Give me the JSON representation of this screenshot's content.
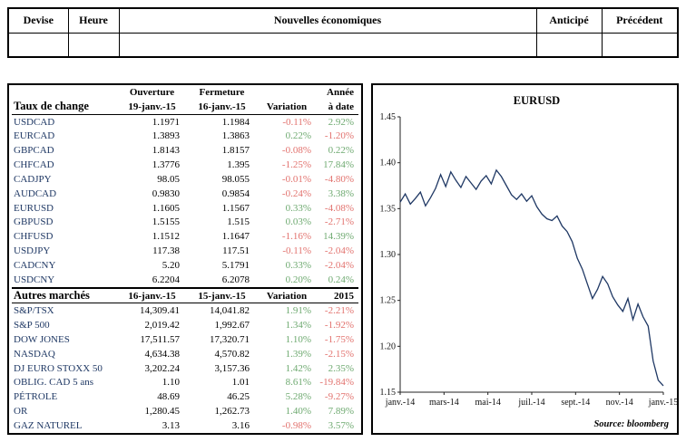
{
  "colors": {
    "positive": "#6faa71",
    "negative": "#e2726e",
    "instrument": "#1f3864",
    "chart_line": "#1f3864"
  },
  "calendar_table": {
    "headers": [
      "Devise",
      "Heure",
      "Nouvelles économiques",
      "Anticipé",
      "Précédent"
    ]
  },
  "rates": {
    "title": "Taux de change",
    "col_headers_line1": {
      "open": "Ouverture",
      "close": "Fermeture",
      "ytd": "Année"
    },
    "col_headers_line2": {
      "open": "19-janv.-15",
      "close": "16-janv.-15",
      "variation": "Variation",
      "ytd": "à date"
    },
    "rows": [
      {
        "name": "USDCAD",
        "open": "1.1971",
        "close": "1.1984",
        "variation": "-0.11%",
        "ytd": "2.92%"
      },
      {
        "name": "EURCAD",
        "open": "1.3893",
        "close": "1.3863",
        "variation": "0.22%",
        "ytd": "-1.20%"
      },
      {
        "name": "GBPCAD",
        "open": "1.8143",
        "close": "1.8157",
        "variation": "-0.08%",
        "ytd": "0.22%"
      },
      {
        "name": "CHFCAD",
        "open": "1.3776",
        "close": "1.395",
        "variation": "-1.25%",
        "ytd": "17.84%"
      },
      {
        "name": "CADJPY",
        "open": "98.05",
        "close": "98.055",
        "variation": "-0.01%",
        "ytd": "-4.80%"
      },
      {
        "name": "AUDCAD",
        "open": "0.9830",
        "close": "0.9854",
        "variation": "-0.24%",
        "ytd": "3.38%"
      },
      {
        "name": "EURUSD",
        "open": "1.1605",
        "close": "1.1567",
        "variation": "0.33%",
        "ytd": "-4.08%"
      },
      {
        "name": "GBPUSD",
        "open": "1.5155",
        "close": "1.515",
        "variation": "0.03%",
        "ytd": "-2.71%"
      },
      {
        "name": "CHFUSD",
        "open": "1.1512",
        "close": "1.1647",
        "variation": "-1.16%",
        "ytd": "14.39%"
      },
      {
        "name": "USDJPY",
        "open": "117.38",
        "close": "117.51",
        "variation": "-0.11%",
        "ytd": "-2.04%"
      },
      {
        "name": "CADCNY",
        "open": "5.20",
        "close": "5.1791",
        "variation": "0.33%",
        "ytd": "-2.04%"
      },
      {
        "name": "USDCNY",
        "open": "6.2204",
        "close": "6.2078",
        "variation": "0.20%",
        "ytd": "0.24%"
      }
    ]
  },
  "markets": {
    "title": "Autres marchés",
    "col_headers": {
      "open": "16-janv.-15",
      "close": "15-janv.-15",
      "variation": "Variation",
      "ytd": "2015"
    },
    "rows": [
      {
        "name": "S&P/TSX",
        "open": "14,309.41",
        "close": "14,041.82",
        "variation": "1.91%",
        "ytd": "-2.21%"
      },
      {
        "name": "S&P 500",
        "open": "2,019.42",
        "close": "1,992.67",
        "variation": "1.34%",
        "ytd": "-1.92%"
      },
      {
        "name": "DOW JONES",
        "open": "17,511.57",
        "close": "17,320.71",
        "variation": "1.10%",
        "ytd": "-1.75%"
      },
      {
        "name": "NASDAQ",
        "open": "4,634.38",
        "close": "4,570.82",
        "variation": "1.39%",
        "ytd": "-2.15%"
      },
      {
        "name": "DJ EURO STOXX 50",
        "open": "3,202.24",
        "close": "3,157.36",
        "variation": "1.42%",
        "ytd": "2.35%"
      },
      {
        "name": "OBLIG. CAD 5 ans",
        "open": "1.10",
        "close": "1.01",
        "variation": "8.61%",
        "ytd": "-19.84%"
      },
      {
        "name": "PÉTROLE",
        "open": "48.69",
        "close": "46.25",
        "variation": "5.28%",
        "ytd": "-9.27%"
      },
      {
        "name": "OR",
        "open": "1,280.45",
        "close": "1,262.73",
        "variation": "1.40%",
        "ytd": "7.89%"
      },
      {
        "name": "GAZ NATUREL",
        "open": "3.13",
        "close": "3.16",
        "variation": "-0.98%",
        "ytd": "3.57%"
      }
    ]
  },
  "chart_data": {
    "type": "line",
    "title": "EURUSD",
    "xlabel": "",
    "ylabel": "",
    "ylim": [
      1.15,
      1.45
    ],
    "y_ticks": [
      "1.45",
      "1.40",
      "1.35",
      "1.30",
      "1.25",
      "1.20",
      "1.15"
    ],
    "x_tick_labels": [
      "janv.-14",
      "mars-14",
      "mai-14",
      "juil.-14",
      "sept.-14",
      "nov.-14",
      "janv.-15"
    ],
    "grid": false,
    "legend": "none",
    "line_color": "#1f3864",
    "source": "Source: bloomberg",
    "series": [
      {
        "name": "EURUSD",
        "values": [
          1.357,
          1.366,
          1.355,
          1.361,
          1.368,
          1.353,
          1.362,
          1.372,
          1.387,
          1.374,
          1.39,
          1.381,
          1.373,
          1.385,
          1.378,
          1.371,
          1.38,
          1.386,
          1.377,
          1.392,
          1.385,
          1.375,
          1.365,
          1.36,
          1.366,
          1.358,
          1.364,
          1.352,
          1.344,
          1.339,
          1.337,
          1.342,
          1.331,
          1.325,
          1.314,
          1.296,
          1.284,
          1.268,
          1.252,
          1.262,
          1.276,
          1.268,
          1.254,
          1.245,
          1.238,
          1.252,
          1.229,
          1.246,
          1.232,
          1.222,
          1.184,
          1.163,
          1.157
        ]
      }
    ]
  }
}
